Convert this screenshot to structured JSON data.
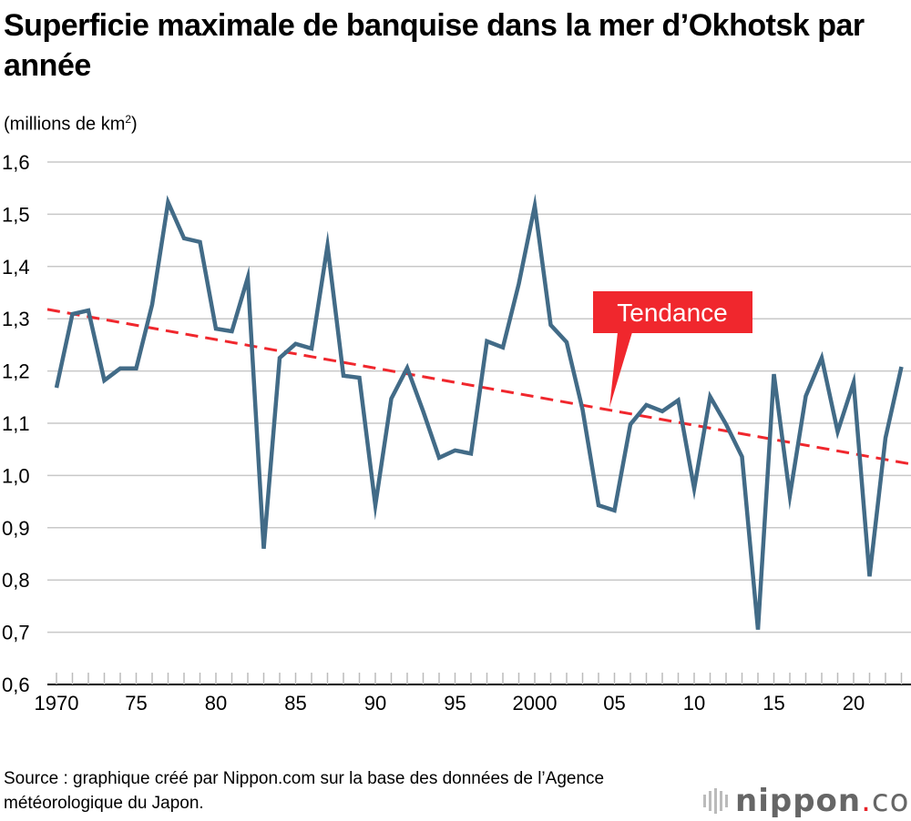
{
  "title": "Superficie maximale de banquise dans la mer d’Okhotsk par année",
  "unit_label": "(millions de km",
  "unit_sup": "2",
  "unit_close": ")",
  "source": "Source : graphique créé par Nippon.com sur la base des données de l’Agence météorologique du Japon.",
  "logo": {
    "name": "nippon",
    "dot": ".",
    "tld": "com"
  },
  "colors": {
    "series": "#426b87",
    "trend": "#f0272d",
    "grid": "#c8c8c8",
    "callout": "#f0272d"
  },
  "chart_data": {
    "type": "line",
    "title": "Superficie maximale de banquise dans la mer d’Okhotsk par année",
    "ylabel": "(millions de km²)",
    "ylim": [
      0.6,
      1.6
    ],
    "yticks": [
      0.6,
      0.7,
      0.8,
      0.9,
      1.0,
      1.1,
      1.2,
      1.3,
      1.4,
      1.5,
      1.6
    ],
    "ytick_labels": [
      "0,6",
      "0,7",
      "0,8",
      "0,9",
      "1,0",
      "1,1",
      "1,2",
      "1,3",
      "1,4",
      "1,5",
      "1,6"
    ],
    "xlim": [
      1970,
      2023
    ],
    "xticks": [
      1970,
      1975,
      1980,
      1985,
      1990,
      1995,
      2000,
      2005,
      2010,
      2015,
      2020
    ],
    "xtick_labels": [
      "1970",
      "75",
      "80",
      "85",
      "90",
      "95",
      "2000",
      "05",
      "10",
      "15",
      "20"
    ],
    "grid": "horizontal",
    "x": [
      1970,
      1971,
      1972,
      1973,
      1974,
      1975,
      1976,
      1977,
      1978,
      1979,
      1980,
      1981,
      1982,
      1983,
      1984,
      1985,
      1986,
      1987,
      1988,
      1989,
      1990,
      1991,
      1992,
      1993,
      1994,
      1995,
      1996,
      1997,
      1998,
      1999,
      2000,
      2001,
      2002,
      2003,
      2004,
      2005,
      2006,
      2007,
      2008,
      2009,
      2010,
      2011,
      2012,
      2013,
      2014,
      2015,
      2016,
      2017,
      2018,
      2019,
      2020,
      2021,
      2022,
      2023
    ],
    "series": [
      {
        "values": [
          1.168,
          1.309,
          1.316,
          1.182,
          1.205,
          1.205,
          1.327,
          1.523,
          1.454,
          1.447,
          1.281,
          1.276,
          1.379,
          0.86,
          1.225,
          1.252,
          1.243,
          1.44,
          1.191,
          1.187,
          0.943,
          1.147,
          1.206,
          1.123,
          1.034,
          1.048,
          1.042,
          1.257,
          1.245,
          1.367,
          1.516,
          1.288,
          1.255,
          1.126,
          0.943,
          0.933,
          1.098,
          1.135,
          1.123,
          1.144,
          0.975,
          1.151,
          1.098,
          1.036,
          0.705,
          1.194,
          0.961,
          1.152,
          1.225,
          1.084,
          1.178,
          0.807,
          1.072,
          1.208
        ]
      }
    ],
    "trend": {
      "label": "Tendance",
      "x": [
        1970,
        2023
      ],
      "values": [
        1.318,
        1.022
      ]
    }
  }
}
